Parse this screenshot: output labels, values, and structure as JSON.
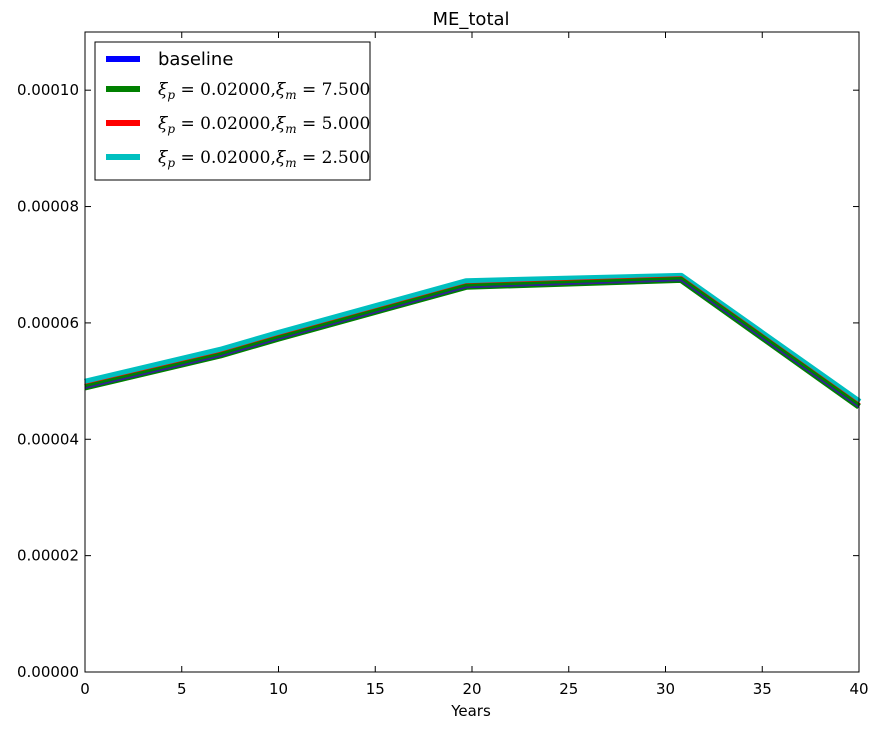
{
  "chart_data": {
    "type": "line",
    "title": "ME_total",
    "xlabel": "Years",
    "ylabel": "",
    "xlim": [
      0,
      40
    ],
    "ylim": [
      0,
      0.00011
    ],
    "x_ticks": [
      0,
      5,
      10,
      15,
      20,
      25,
      30,
      35,
      40
    ],
    "x_tick_labels": [
      "0",
      "5",
      "10",
      "15",
      "20",
      "25",
      "30",
      "35",
      "40"
    ],
    "y_ticks": [
      0,
      2e-05,
      4e-05,
      6e-05,
      8e-05,
      0.0001
    ],
    "y_tick_labels": [
      "0.00000",
      "0.00002",
      "0.00004",
      "0.00006",
      "0.00008",
      "0.00010"
    ],
    "grid": false,
    "legend_position": "top-left",
    "x": [
      0,
      7,
      10,
      19.7,
      30.8,
      40
    ],
    "series": [
      {
        "name": "baseline",
        "legend_label": {
          "xi_p": "0.02000",
          "xi_m": ""
        },
        "color": "#0000ff",
        "values": [
          4.88e-05,
          5.43e-05,
          5.72e-05,
          6.61e-05,
          6.73e-05,
          4.55e-05
        ]
      },
      {
        "name": "ξp=0.02000,ξm=7.500",
        "legend_label": {
          "xi_p": "0.02000",
          "xi_m": "7.500"
        },
        "color": "#008000",
        "values": [
          4.89e-05,
          5.44e-05,
          5.73e-05,
          6.62e-05,
          6.74e-05,
          4.56e-05
        ]
      },
      {
        "name": "ξp=0.02000,ξm=5.000",
        "legend_label": {
          "xi_p": "0.02000",
          "xi_m": "5.000"
        },
        "color": "#ff0000",
        "values": [
          4.9e-05,
          5.45e-05,
          5.74e-05,
          6.63e-05,
          6.75e-05,
          4.57e-05
        ]
      },
      {
        "name": "ξp=0.02000,ξm=2.500",
        "legend_label": {
          "xi_p": "0.02000",
          "xi_m": "2.500"
        },
        "color": "#00bfbf",
        "values": [
          4.97e-05,
          5.52e-05,
          5.81e-05,
          6.7e-05,
          6.79e-05,
          4.63e-05
        ]
      }
    ]
  }
}
